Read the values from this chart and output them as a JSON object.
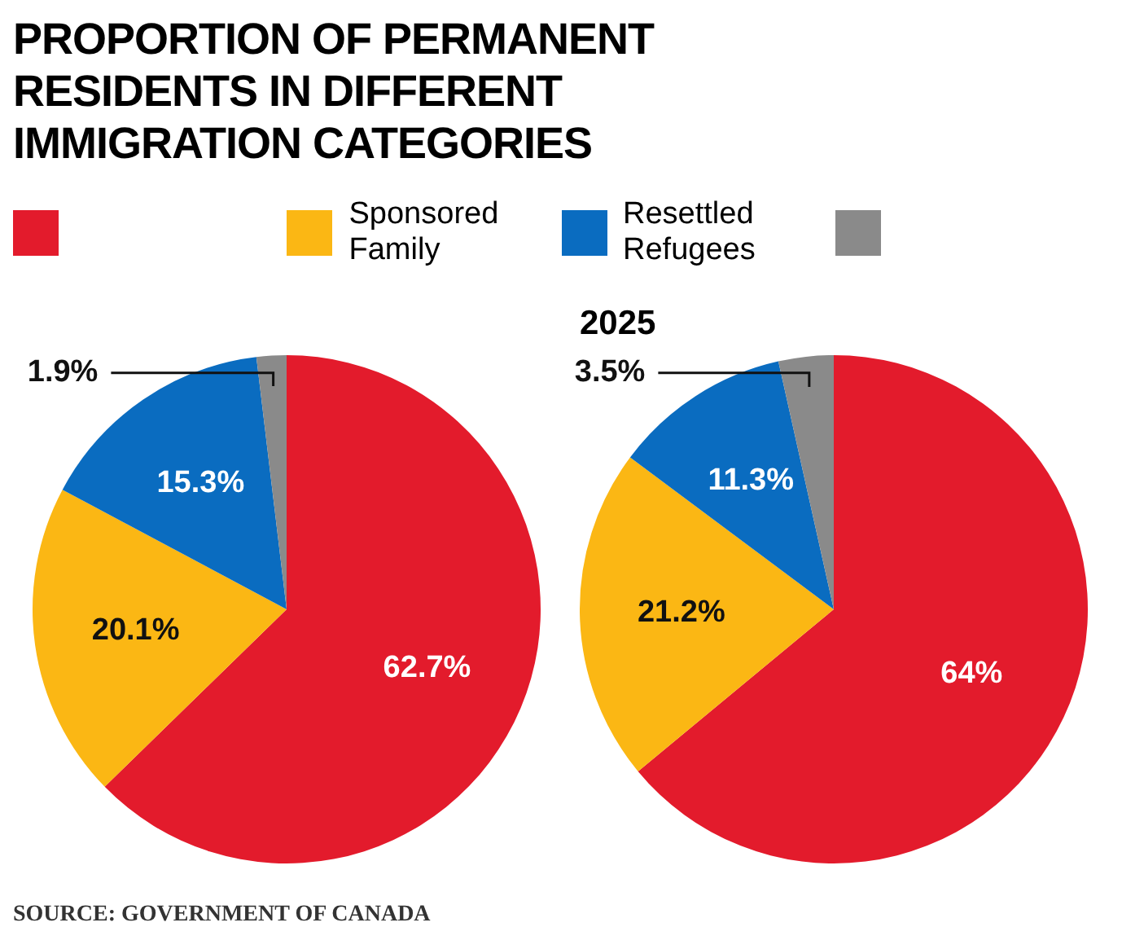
{
  "chart_data": [
    {
      "type": "pie",
      "title": "PROPORTION OF PERMANENT RESIDENTS IN DIFFERENT IMMIGRATION CATEGORIES",
      "categories": [
        null,
        "Sponsored Family",
        "Resettled Refugees",
        null
      ],
      "values": [
        62.7,
        20.1,
        15.3,
        1.9
      ],
      "colors": [
        "#e31b2c",
        "#fbb714",
        "#0a6cc0",
        "#8a8a8a"
      ],
      "value_labels": [
        "62.7%",
        "20.1%",
        "15.3%",
        "1.9%"
      ],
      "legend": "top",
      "annotations": [
        "SOURCE: GOVERNMENT OF CANADA"
      ]
    },
    {
      "type": "pie",
      "title": "2025",
      "categories": [
        null,
        null,
        null,
        null
      ],
      "values": [
        64,
        21.2,
        11.3,
        3.5
      ],
      "colors": [
        "#e31b2c",
        "#fbb714",
        "#0a6cc0",
        "#8a8a8a"
      ],
      "value_labels": [
        "64%",
        "21.2%",
        "11.3%",
        "3.5%"
      ]
    }
  ]
}
